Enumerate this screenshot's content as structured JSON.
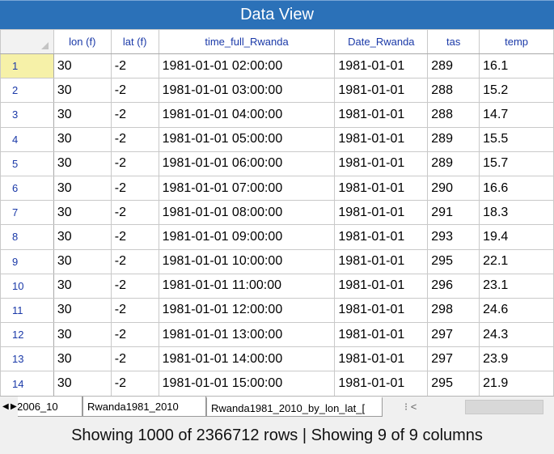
{
  "window": {
    "title": "Data View"
  },
  "grid": {
    "columns": [
      "lon (f)",
      "lat (f)",
      "time_full_Rwanda",
      "Date_Rwanda",
      "tas",
      "temp"
    ],
    "rows": [
      {
        "n": "1",
        "lon": "30",
        "lat": "-2",
        "time": "1981-01-01 02:00:00",
        "date": "1981-01-01",
        "tas": "289",
        "temp": "16.1"
      },
      {
        "n": "2",
        "lon": "30",
        "lat": "-2",
        "time": "1981-01-01 03:00:00",
        "date": "1981-01-01",
        "tas": "288",
        "temp": "15.2"
      },
      {
        "n": "3",
        "lon": "30",
        "lat": "-2",
        "time": "1981-01-01 04:00:00",
        "date": "1981-01-01",
        "tas": "288",
        "temp": "14.7"
      },
      {
        "n": "4",
        "lon": "30",
        "lat": "-2",
        "time": "1981-01-01 05:00:00",
        "date": "1981-01-01",
        "tas": "289",
        "temp": "15.5"
      },
      {
        "n": "5",
        "lon": "30",
        "lat": "-2",
        "time": "1981-01-01 06:00:00",
        "date": "1981-01-01",
        "tas": "289",
        "temp": "15.7"
      },
      {
        "n": "6",
        "lon": "30",
        "lat": "-2",
        "time": "1981-01-01 07:00:00",
        "date": "1981-01-01",
        "tas": "290",
        "temp": "16.6"
      },
      {
        "n": "7",
        "lon": "30",
        "lat": "-2",
        "time": "1981-01-01 08:00:00",
        "date": "1981-01-01",
        "tas": "291",
        "temp": "18.3"
      },
      {
        "n": "8",
        "lon": "30",
        "lat": "-2",
        "time": "1981-01-01 09:00:00",
        "date": "1981-01-01",
        "tas": "293",
        "temp": "19.4"
      },
      {
        "n": "9",
        "lon": "30",
        "lat": "-2",
        "time": "1981-01-01 10:00:00",
        "date": "1981-01-01",
        "tas": "295",
        "temp": "22.1"
      },
      {
        "n": "10",
        "lon": "30",
        "lat": "-2",
        "time": "1981-01-01 11:00:00",
        "date": "1981-01-01",
        "tas": "296",
        "temp": "23.1"
      },
      {
        "n": "11",
        "lon": "30",
        "lat": "-2",
        "time": "1981-01-01 12:00:00",
        "date": "1981-01-01",
        "tas": "298",
        "temp": "24.6"
      },
      {
        "n": "12",
        "lon": "30",
        "lat": "-2",
        "time": "1981-01-01 13:00:00",
        "date": "1981-01-01",
        "tas": "297",
        "temp": "24.3"
      },
      {
        "n": "13",
        "lon": "30",
        "lat": "-2",
        "time": "1981-01-01 14:00:00",
        "date": "1981-01-01",
        "tas": "297",
        "temp": "23.9"
      },
      {
        "n": "14",
        "lon": "30",
        "lat": "-2",
        "time": "1981-01-01 15:00:00",
        "date": "1981-01-01",
        "tas": "295",
        "temp": "21.9"
      }
    ],
    "selected_row": "1",
    "colors": {
      "header_text": "#1a39a8",
      "selected_row_header": "#f6f1a8",
      "title_bar": "#2b71b8"
    }
  },
  "tabs": {
    "nav_first": "◀",
    "nav_last": "▶",
    "items": [
      {
        "label": "2006_10",
        "active": false
      },
      {
        "label": "Rwanda1981_2010",
        "active": false
      },
      {
        "label": "Rwanda1981_2010_by_lon_lat_[",
        "active": true
      }
    ],
    "more": "⁝ <"
  },
  "status": {
    "text": "Showing 1000 of 2366712 rows | Showing 9 of 9 columns"
  }
}
